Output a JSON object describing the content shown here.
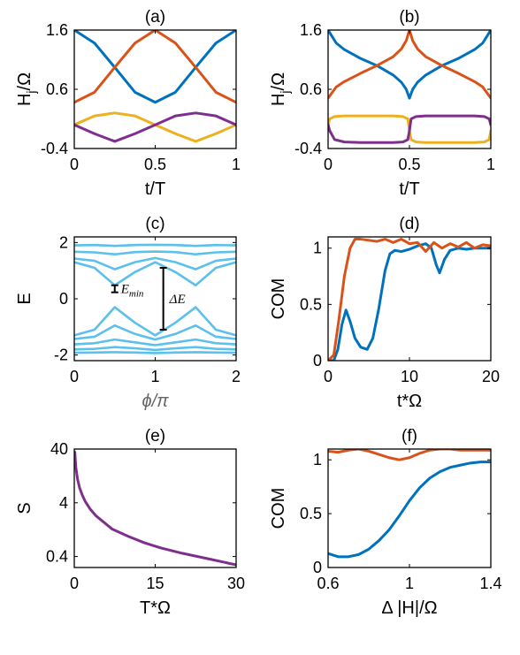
{
  "colors": {
    "blue": "#0072BD",
    "orange": "#D95319",
    "yellow": "#EDB120",
    "purple": "#7E2F8E",
    "lightblue": "#5BC0EB",
    "label_gray": "#666666"
  },
  "chart_data": [
    {
      "id": "a",
      "type": "line",
      "title": "(a)",
      "xlabel": "t/T",
      "ylabel": "H_j/Ω",
      "xlim": [
        0,
        1
      ],
      "ylim": [
        -0.4,
        1.6
      ],
      "xticks": [
        0,
        0.5,
        1
      ],
      "xtick_labels": [
        "0",
        "0.5",
        "1"
      ],
      "yticks": [
        -0.4,
        0.6,
        1.6
      ],
      "ytick_labels": [
        "-0.4",
        "0.6",
        "1.6"
      ],
      "series": [
        {
          "color": "blue",
          "x": [
            0,
            0.125,
            0.25,
            0.375,
            0.5,
            0.625,
            0.75,
            0.875,
            1
          ],
          "y": [
            1.6,
            1.38,
            0.97,
            0.55,
            0.38,
            0.55,
            0.97,
            1.38,
            1.6
          ]
        },
        {
          "color": "orange",
          "x": [
            0,
            0.125,
            0.25,
            0.375,
            0.5,
            0.625,
            0.75,
            0.875,
            1
          ],
          "y": [
            0.38,
            0.55,
            0.97,
            1.38,
            1.6,
            1.38,
            0.97,
            0.55,
            0.38
          ]
        },
        {
          "color": "yellow",
          "x": [
            0,
            0.125,
            0.25,
            0.375,
            0.5,
            0.625,
            0.75,
            0.875,
            1
          ],
          "y": [
            0.0,
            0.15,
            0.2,
            0.15,
            0.0,
            -0.15,
            -0.28,
            -0.15,
            0.0
          ]
        },
        {
          "color": "purple",
          "x": [
            0,
            0.125,
            0.25,
            0.375,
            0.5,
            0.625,
            0.75,
            0.875,
            1
          ],
          "y": [
            0.0,
            -0.15,
            -0.28,
            -0.15,
            0.0,
            0.15,
            0.2,
            0.15,
            0.0
          ]
        }
      ]
    },
    {
      "id": "b",
      "type": "line",
      "title": "(b)",
      "xlabel": "t/T",
      "ylabel": "H_j/Ω",
      "xlim": [
        0,
        1
      ],
      "ylim": [
        -0.4,
        1.6
      ],
      "xticks": [
        0,
        0.5,
        1
      ],
      "xtick_labels": [
        "0",
        "0.5",
        "1"
      ],
      "yticks": [
        -0.4,
        0.6,
        1.6
      ],
      "ytick_labels": [
        "-0.4",
        "0.6",
        "1.6"
      ],
      "series": [
        {
          "color": "blue",
          "x": [
            0,
            0.05,
            0.1,
            0.2,
            0.3,
            0.4,
            0.45,
            0.48,
            0.5,
            0.52,
            0.55,
            0.6,
            0.7,
            0.8,
            0.9,
            0.95,
            1
          ],
          "y": [
            1.6,
            1.38,
            1.27,
            1.12,
            1.0,
            0.84,
            0.72,
            0.6,
            0.45,
            0.6,
            0.72,
            0.84,
            1.0,
            1.12,
            1.27,
            1.38,
            1.6
          ]
        },
        {
          "color": "orange",
          "x": [
            0,
            0.05,
            0.1,
            0.2,
            0.3,
            0.4,
            0.45,
            0.48,
            0.5,
            0.52,
            0.55,
            0.6,
            0.7,
            0.8,
            0.9,
            0.95,
            1
          ],
          "y": [
            0.45,
            0.64,
            0.73,
            0.87,
            1.0,
            1.15,
            1.28,
            1.42,
            1.6,
            1.42,
            1.28,
            1.15,
            1.0,
            0.87,
            0.73,
            0.64,
            0.45
          ]
        },
        {
          "color": "yellow",
          "x": [
            0,
            0.01,
            0.04,
            0.1,
            0.2,
            0.3,
            0.4,
            0.46,
            0.49,
            0.5,
            0.51,
            0.54,
            0.6,
            0.7,
            0.8,
            0.9,
            0.96,
            0.99,
            1
          ],
          "y": [
            0.0,
            0.1,
            0.14,
            0.15,
            0.15,
            0.15,
            0.15,
            0.14,
            0.1,
            -0.1,
            -0.25,
            -0.29,
            -0.3,
            -0.3,
            -0.3,
            -0.3,
            -0.29,
            -0.25,
            -0.1
          ]
        },
        {
          "color": "purple",
          "x": [
            0,
            0.01,
            0.04,
            0.1,
            0.2,
            0.3,
            0.4,
            0.46,
            0.49,
            0.5,
            0.51,
            0.54,
            0.6,
            0.7,
            0.8,
            0.9,
            0.96,
            0.99,
            1
          ],
          "y": [
            0.0,
            -0.1,
            -0.25,
            -0.29,
            -0.3,
            -0.3,
            -0.3,
            -0.29,
            -0.25,
            -0.1,
            0.1,
            0.14,
            0.15,
            0.15,
            0.15,
            0.15,
            0.14,
            0.1,
            0.0
          ]
        }
      ]
    },
    {
      "id": "c",
      "type": "line",
      "title": "(c)",
      "xlabel": "ϕ/π",
      "ylabel": "E",
      "xlim": [
        0,
        2
      ],
      "ylim": [
        -2.2,
        2.2
      ],
      "xticks": [
        0,
        1,
        2
      ],
      "xtick_labels": [
        "0",
        "1",
        "2"
      ],
      "yticks": [
        -2,
        0,
        2
      ],
      "ytick_labels": [
        "-2",
        "0",
        "2"
      ],
      "annotations": [
        {
          "text": "E_min",
          "main": "E",
          "sub": "min",
          "x": 0.5,
          "y_low": 0.23,
          "y_high": 0.48
        },
        {
          "text": "ΔE",
          "x": 1.1,
          "y_low": -1.1,
          "y_high": 1.1
        }
      ],
      "series": [
        {
          "color": "lightblue",
          "name": "",
          "x": [
            0,
            0.25,
            0.5,
            0.75,
            1,
            1.25,
            1.5,
            1.75,
            2
          ],
          "y": [
            1.9,
            1.91,
            1.88,
            1.91,
            1.92,
            1.91,
            1.88,
            1.91,
            1.9
          ]
        },
        {
          "color": "lightblue",
          "name": "",
          "x": [
            0,
            0.25,
            0.5,
            0.75,
            1,
            1.25,
            1.5,
            1.75,
            2
          ],
          "y": [
            1.67,
            1.65,
            1.58,
            1.66,
            1.68,
            1.66,
            1.58,
            1.65,
            1.67
          ]
        },
        {
          "color": "lightblue",
          "name": "",
          "x": [
            0,
            0.25,
            0.5,
            0.75,
            1,
            1.25,
            1.5,
            1.75,
            2
          ],
          "y": [
            1.43,
            1.35,
            1.05,
            1.3,
            1.45,
            1.3,
            1.05,
            1.35,
            1.43
          ]
        },
        {
          "color": "lightblue",
          "name": "",
          "x": [
            0,
            0.25,
            0.5,
            0.75,
            1,
            1.25,
            1.5,
            1.75,
            2
          ],
          "y": [
            1.3,
            1.1,
            0.48,
            0.95,
            1.3,
            0.95,
            0.48,
            1.1,
            1.3
          ]
        },
        {
          "color": "lightblue",
          "name": "",
          "x": [
            0,
            0.25,
            0.5,
            0.75,
            1,
            1.25,
            1.5,
            1.75,
            2
          ],
          "y": [
            -1.3,
            -1.1,
            -0.3,
            -0.85,
            -1.3,
            -0.85,
            -0.3,
            -1.1,
            -1.3
          ]
        },
        {
          "color": "lightblue",
          "name": "",
          "x": [
            0,
            0.25,
            0.5,
            0.75,
            1,
            1.25,
            1.5,
            1.75,
            2
          ],
          "y": [
            -1.43,
            -1.35,
            -0.95,
            -1.25,
            -1.45,
            -1.25,
            -0.95,
            -1.35,
            -1.43
          ]
        },
        {
          "color": "lightblue",
          "name": "",
          "x": [
            0,
            0.25,
            0.5,
            0.75,
            1,
            1.25,
            1.5,
            1.75,
            2
          ],
          "y": [
            -1.62,
            -1.58,
            -1.45,
            -1.55,
            -1.65,
            -1.55,
            -1.45,
            -1.58,
            -1.62
          ]
        },
        {
          "color": "lightblue",
          "name": "",
          "x": [
            0,
            0.25,
            0.5,
            0.75,
            1,
            1.25,
            1.5,
            1.75,
            2
          ],
          "y": [
            -1.8,
            -1.78,
            -1.72,
            -1.76,
            -1.82,
            -1.76,
            -1.72,
            -1.78,
            -1.8
          ]
        },
        {
          "color": "lightblue",
          "name": "",
          "x": [
            0,
            0.25,
            0.5,
            0.75,
            1,
            1.25,
            1.5,
            1.75,
            2
          ],
          "y": [
            -1.92,
            -1.91,
            -1.9,
            -1.91,
            -1.93,
            -1.91,
            -1.9,
            -1.91,
            -1.92
          ]
        }
      ]
    },
    {
      "id": "d",
      "type": "line",
      "title": "(d)",
      "xlabel": "t*Ω",
      "ylabel": "COM",
      "xlim": [
        0,
        20
      ],
      "ylim": [
        0,
        1.1
      ],
      "xticks": [
        0,
        10,
        20
      ],
      "xtick_labels": [
        "0",
        "10",
        "20"
      ],
      "yticks": [
        0,
        0.5,
        1
      ],
      "ytick_labels": [
        "0",
        "0.5",
        "1"
      ],
      "series": [
        {
          "color": "blue",
          "x": [
            0,
            0.7,
            1.2,
            1.7,
            2.2,
            2.7,
            3.3,
            4.0,
            4.8,
            5.5,
            6.2,
            7.0,
            7.6,
            8.2,
            9.0,
            10.0,
            11.0,
            12.0,
            12.7,
            13.3,
            13.7,
            14.3,
            15.0,
            16.0,
            17.0,
            18.0,
            19.0,
            20.0
          ],
          "y": [
            0,
            0.0,
            0.1,
            0.32,
            0.45,
            0.35,
            0.2,
            0.12,
            0.1,
            0.2,
            0.45,
            0.8,
            0.95,
            0.98,
            0.97,
            0.99,
            1.02,
            1.04,
            1.0,
            0.85,
            0.78,
            0.9,
            0.98,
            1.0,
            0.99,
            1.0,
            1.0,
            1.0
          ]
        },
        {
          "color": "orange",
          "x": [
            0,
            0.7,
            1.3,
            2.0,
            2.7,
            3.3,
            4.0,
            5.0,
            6.0,
            7.0,
            8.0,
            9.0,
            10.0,
            11.0,
            12.0,
            13.0,
            14.0,
            15.0,
            16.0,
            17.0,
            18.0,
            19.0,
            20.0
          ],
          "y": [
            0,
            0.05,
            0.35,
            0.75,
            1.0,
            1.08,
            1.08,
            1.07,
            1.06,
            1.08,
            1.05,
            1.08,
            1.04,
            1.05,
            0.97,
            1.05,
            1.0,
            1.04,
            1.01,
            1.05,
            1.0,
            1.03,
            1.02
          ]
        }
      ]
    },
    {
      "id": "e",
      "type": "line",
      "title": "(e)",
      "xlabel": "T*Ω",
      "ylabel": "S",
      "yscale": "log",
      "xlim": [
        0,
        30
      ],
      "ylim": [
        0.25,
        40
      ],
      "xticks": [
        0,
        15,
        30
      ],
      "xtick_labels": [
        "0",
        "15",
        "30"
      ],
      "yticks": [
        0.4,
        4,
        40
      ],
      "ytick_labels": [
        "0.4",
        "4",
        "40"
      ],
      "series": [
        {
          "color": "purple",
          "x": [
            0.1,
            0.3,
            0.6,
            1,
            1.5,
            2,
            3,
            4,
            5,
            7,
            10,
            13,
            16,
            20,
            25,
            30
          ],
          "y": [
            35,
            18,
            11,
            7.5,
            5.5,
            4.3,
            3.0,
            2.3,
            1.9,
            1.3,
            0.95,
            0.72,
            0.58,
            0.46,
            0.36,
            0.28
          ]
        }
      ]
    },
    {
      "id": "f",
      "type": "line",
      "title": "(f)",
      "xlabel": "Δ |H|/Ω",
      "ylabel": "COM",
      "xlim": [
        0.6,
        1.4
      ],
      "ylim": [
        0,
        1.1
      ],
      "xticks": [
        0.6,
        1,
        1.4
      ],
      "xtick_labels": [
        "0.6",
        "1",
        "1.4"
      ],
      "yticks": [
        0,
        0.5,
        1
      ],
      "ytick_labels": [
        "0",
        "0.5",
        "1"
      ],
      "series": [
        {
          "color": "blue",
          "x": [
            0.6,
            0.65,
            0.7,
            0.75,
            0.8,
            0.85,
            0.9,
            0.95,
            1.0,
            1.05,
            1.1,
            1.15,
            1.2,
            1.25,
            1.3,
            1.35,
            1.4
          ],
          "y": [
            0.13,
            0.1,
            0.1,
            0.12,
            0.17,
            0.25,
            0.35,
            0.48,
            0.62,
            0.74,
            0.83,
            0.89,
            0.93,
            0.95,
            0.97,
            0.98,
            0.98
          ]
        },
        {
          "color": "orange",
          "x": [
            0.6,
            0.65,
            0.7,
            0.75,
            0.8,
            0.85,
            0.9,
            0.95,
            1.0,
            1.05,
            1.1,
            1.15,
            1.2,
            1.25,
            1.3,
            1.35,
            1.4
          ],
          "y": [
            1.08,
            1.07,
            1.09,
            1.1,
            1.08,
            1.05,
            1.02,
            1.0,
            1.02,
            1.06,
            1.09,
            1.1,
            1.1,
            1.09,
            1.09,
            1.09,
            1.09
          ]
        }
      ]
    }
  ]
}
